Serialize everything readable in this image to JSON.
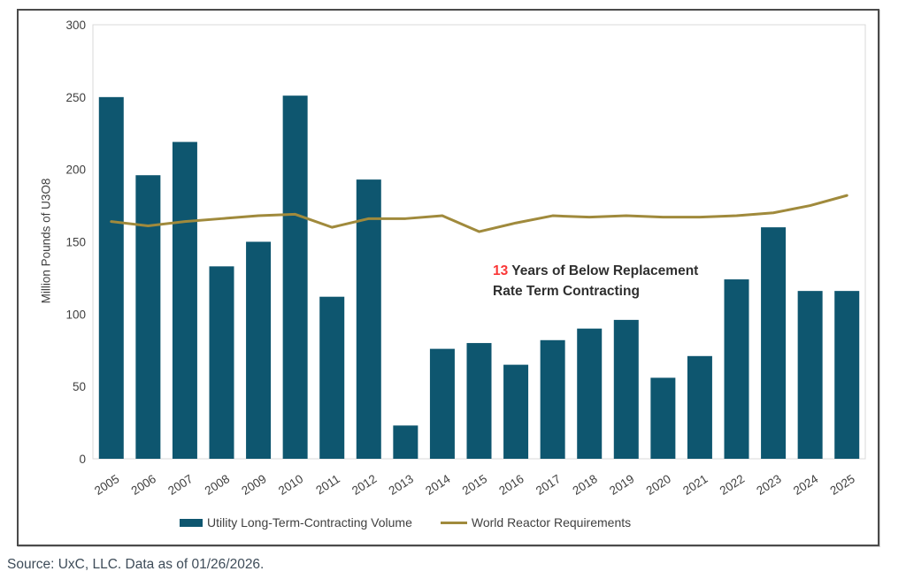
{
  "chart_data": {
    "type": "bar",
    "title": "",
    "ylabel": "Million Pounds of U3O8",
    "xlabel": "",
    "categories": [
      "2005",
      "2006",
      "2007",
      "2008",
      "2009",
      "2010",
      "2011",
      "2012",
      "2013",
      "2014",
      "2015",
      "2016",
      "2017",
      "2018",
      "2019",
      "2020",
      "2021",
      "2022",
      "2023",
      "2024",
      "2025"
    ],
    "series": [
      {
        "name": "Utility Long-Term-Contracting Volume",
        "type": "bar",
        "color": "#0e566f",
        "values": [
          250,
          196,
          219,
          133,
          150,
          251,
          112,
          193,
          23,
          76,
          80,
          65,
          82,
          90,
          96,
          56,
          71,
          124,
          160,
          116,
          116
        ]
      },
      {
        "name": "World Reactor Requirements",
        "type": "line",
        "color": "#a08a3c",
        "values": [
          164,
          161,
          164,
          166,
          168,
          169,
          160,
          166,
          166,
          168,
          157,
          163,
          168,
          167,
          168,
          167,
          167,
          168,
          170,
          175,
          182
        ]
      }
    ],
    "ylim": [
      0,
      300
    ],
    "yticks": [
      0,
      50,
      100,
      150,
      200,
      250,
      300
    ],
    "grid": false,
    "legend_position": "bottom"
  },
  "annotation": {
    "highlight": "13",
    "line1": " Years of Below Replacement",
    "line2": "Rate Term Contracting",
    "highlight_color": "#fa3737"
  },
  "source": {
    "text": "Source: UxC, LLC. Data as of 01/26/2026."
  },
  "colors": {
    "axis_border": "#d9d9d9",
    "frame_border": "#4a4a4a",
    "tick_text": "#3f3f3f"
  }
}
